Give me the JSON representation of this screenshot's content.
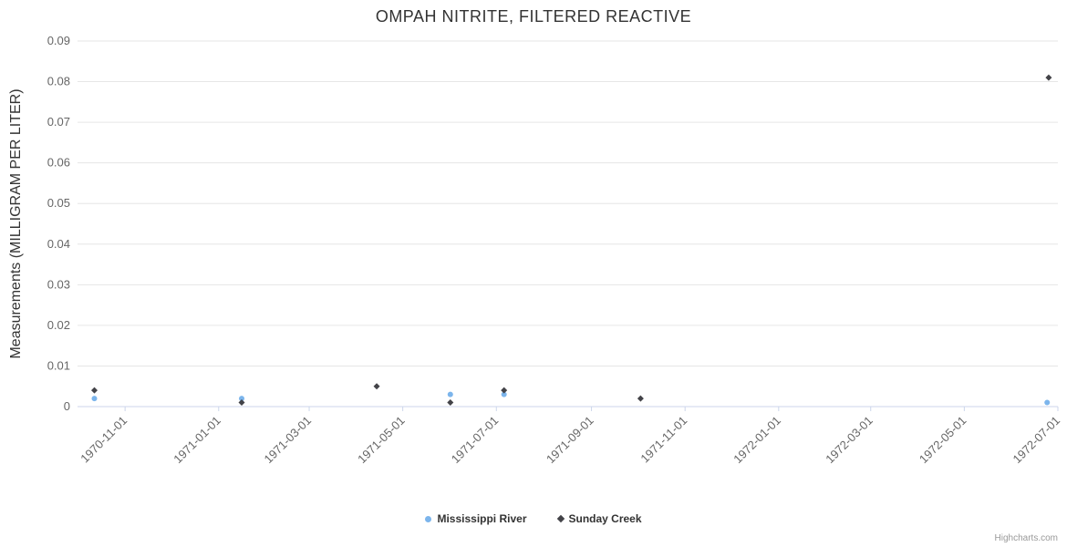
{
  "credit": "Highcharts.com",
  "colors": {
    "grid": "#e6e6e6",
    "axis_line": "#ccd6eb",
    "tick_label": "#666666",
    "title_color": "#333333",
    "mississippi_river": "#7cb5ec",
    "sunday_creek": "#434348"
  },
  "chart_data": {
    "type": "scatter",
    "title": "OMPAH NITRITE, FILTERED REACTIVE",
    "xlabel": "",
    "ylabel": "Measurements (MILLIGRAM PER LITER)",
    "ylim": [
      0,
      0.09
    ],
    "y_ticks": [
      0,
      0.01,
      0.02,
      0.03,
      0.04,
      0.05,
      0.06,
      0.07,
      0.08,
      0.09
    ],
    "x_range": [
      "1970-10-01",
      "1972-07-01"
    ],
    "x_ticks": [
      "1970-11-01",
      "1971-01-01",
      "1971-03-01",
      "1971-05-01",
      "1971-07-01",
      "1971-09-01",
      "1971-11-01",
      "1972-01-01",
      "1972-03-01",
      "1972-05-01",
      "1972-07-01"
    ],
    "grid": true,
    "legend_position": "bottom",
    "series": [
      {
        "name": "Mississippi River",
        "marker": "circle",
        "color": "#7cb5ec",
        "points": [
          {
            "x": "1970-10-12",
            "y": 0.002
          },
          {
            "x": "1971-01-16",
            "y": 0.002
          },
          {
            "x": "1971-06-01",
            "y": 0.003
          },
          {
            "x": "1971-07-06",
            "y": 0.003
          },
          {
            "x": "1972-06-24",
            "y": 0.001
          }
        ]
      },
      {
        "name": "Sunday Creek",
        "marker": "diamond",
        "color": "#434348",
        "points": [
          {
            "x": "1970-10-12",
            "y": 0.004
          },
          {
            "x": "1971-01-16",
            "y": 0.001
          },
          {
            "x": "1971-04-14",
            "y": 0.005
          },
          {
            "x": "1971-06-01",
            "y": 0.001
          },
          {
            "x": "1971-07-06",
            "y": 0.004
          },
          {
            "x": "1971-10-03",
            "y": 0.002
          },
          {
            "x": "1972-06-25",
            "y": 0.081
          }
        ]
      }
    ]
  }
}
